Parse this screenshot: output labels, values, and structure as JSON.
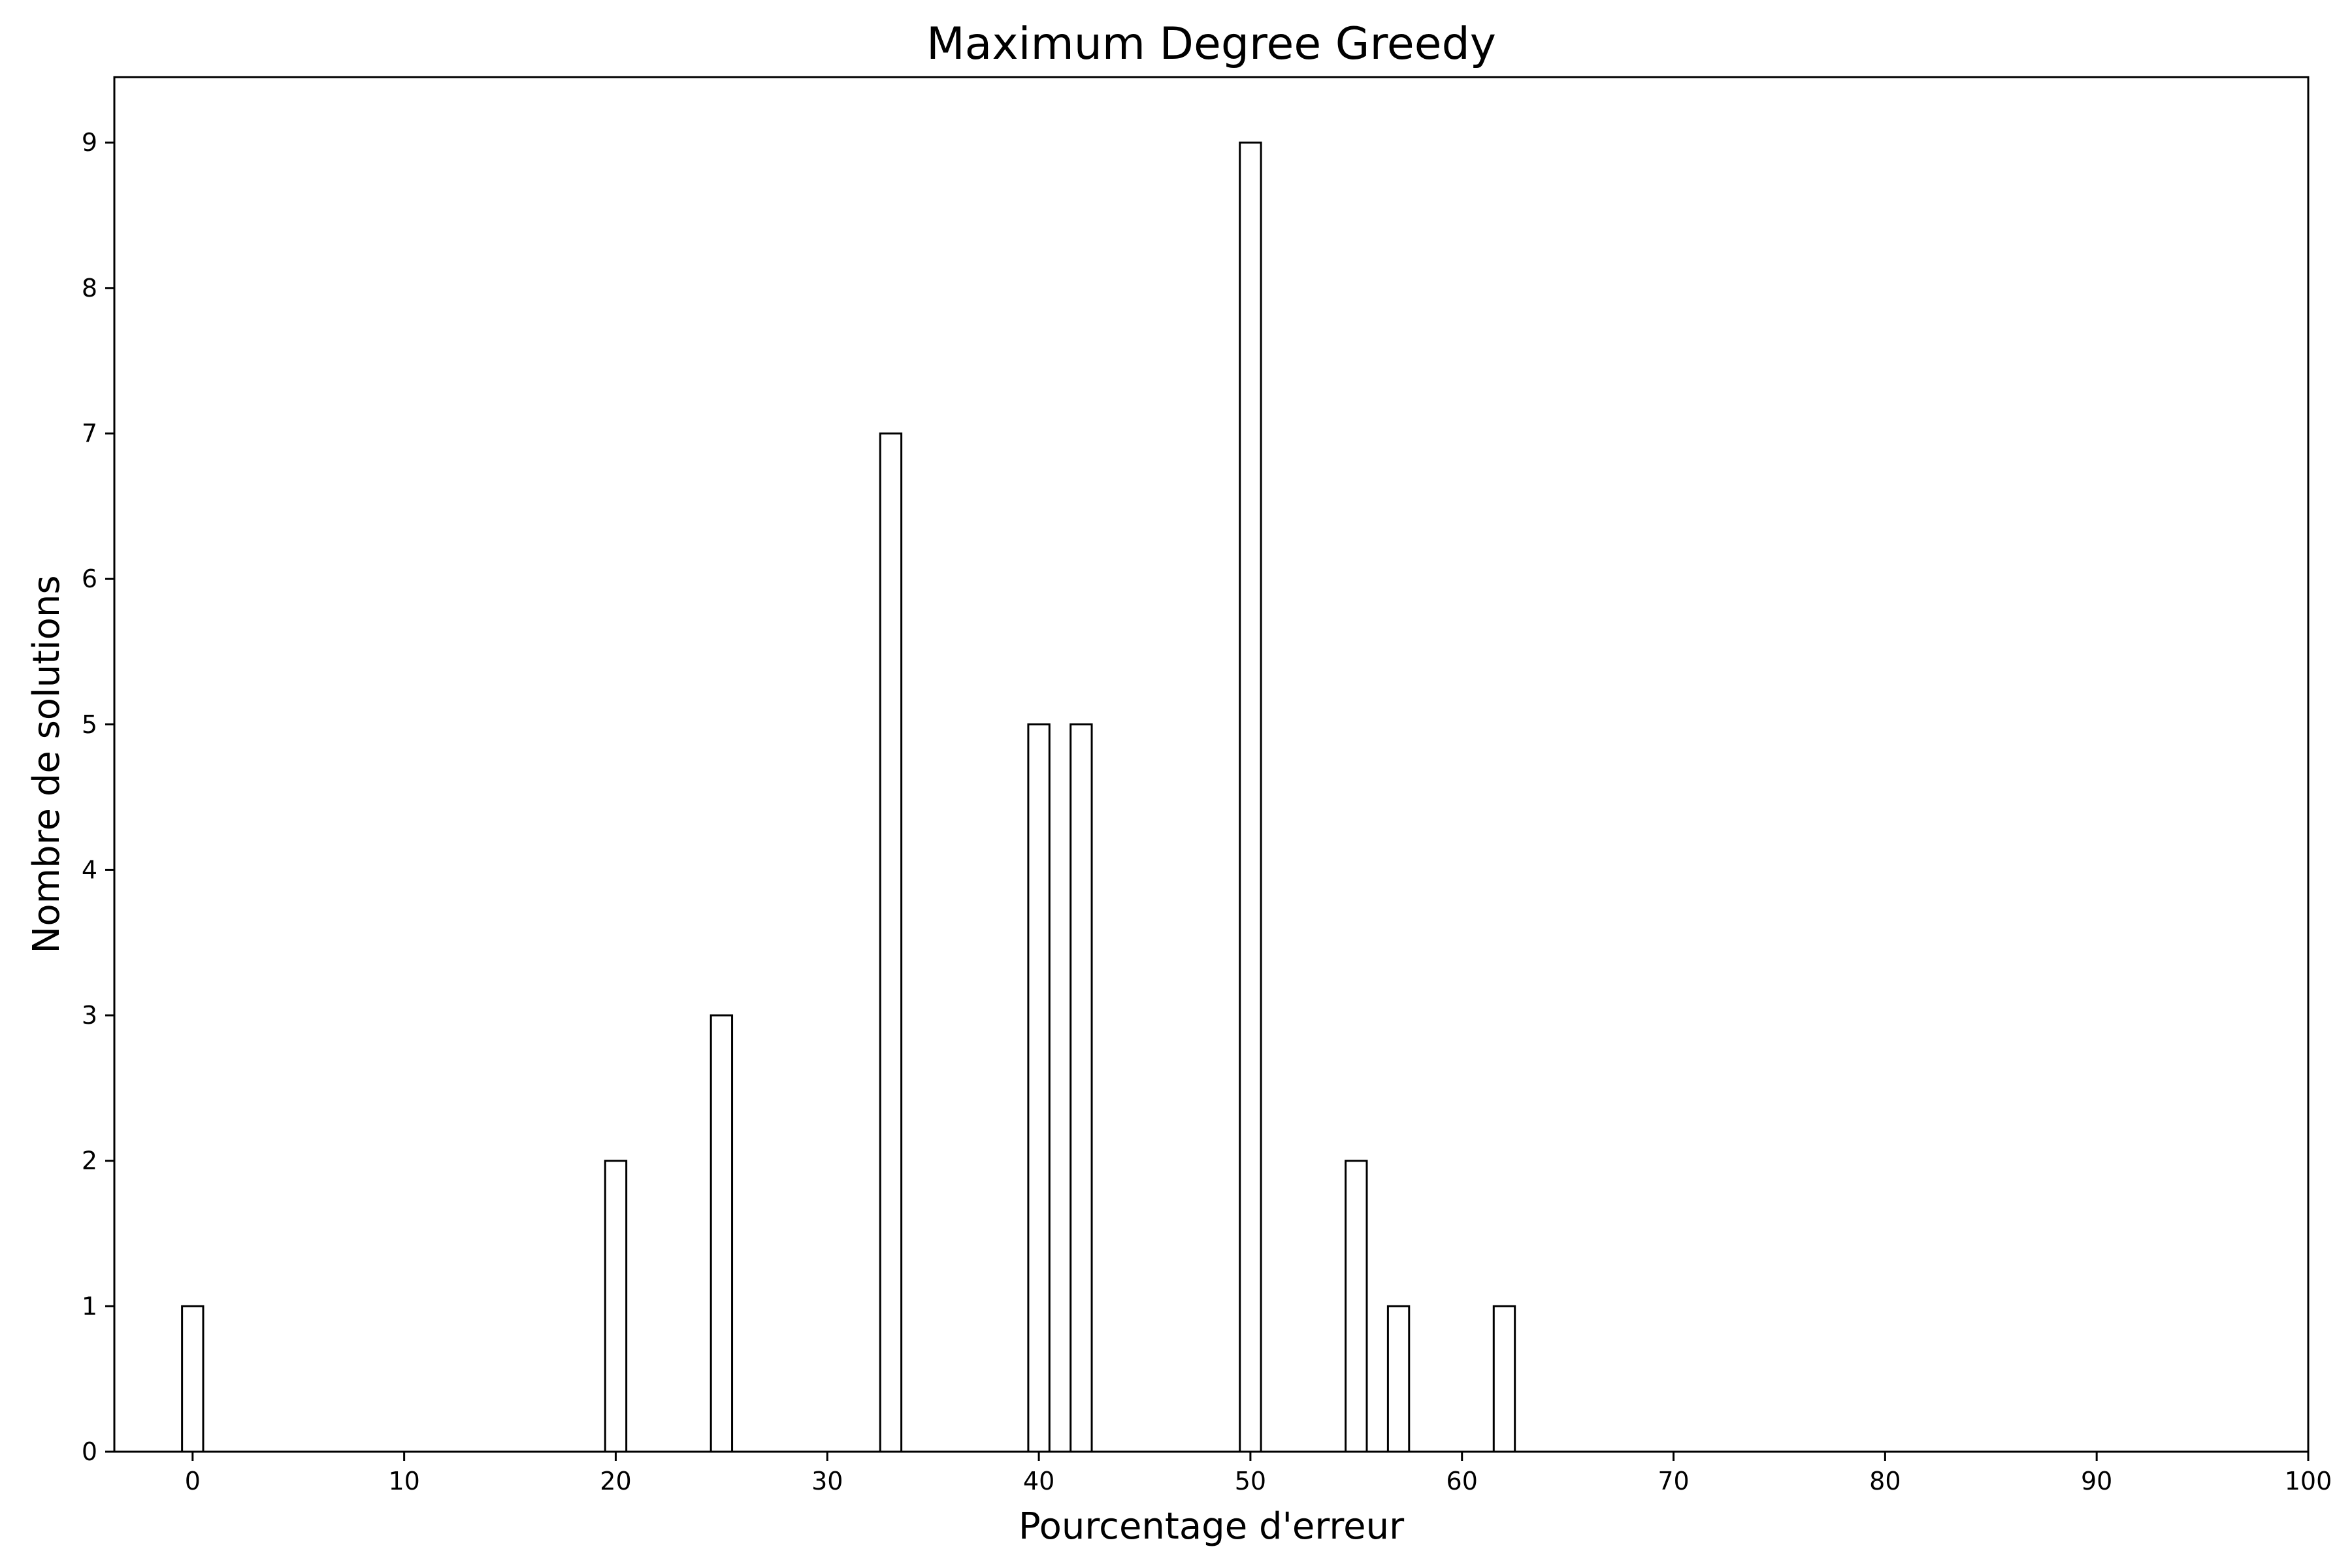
{
  "chart_data": {
    "type": "bar",
    "title": "Maximum Degree Greedy",
    "xlabel": "Pourcentage d'erreur",
    "ylabel": "Nombre de solutions",
    "x": [
      0,
      20,
      25,
      33,
      40,
      42,
      50,
      55,
      57,
      62
    ],
    "values": [
      1,
      2,
      3,
      7,
      5,
      5,
      9,
      2,
      1,
      1
    ],
    "bar_width": 1,
    "xlim": [
      -3.7,
      100
    ],
    "ylim": [
      0,
      9.45
    ],
    "xticks": [
      0,
      10,
      20,
      30,
      40,
      50,
      60,
      70,
      80,
      90,
      100
    ],
    "yticks": [
      0,
      1,
      2,
      3,
      4,
      5,
      6,
      7,
      8,
      9
    ],
    "grid": false,
    "legend": "none",
    "bar_fill": "#ffffff",
    "bar_edge": "#000000"
  }
}
